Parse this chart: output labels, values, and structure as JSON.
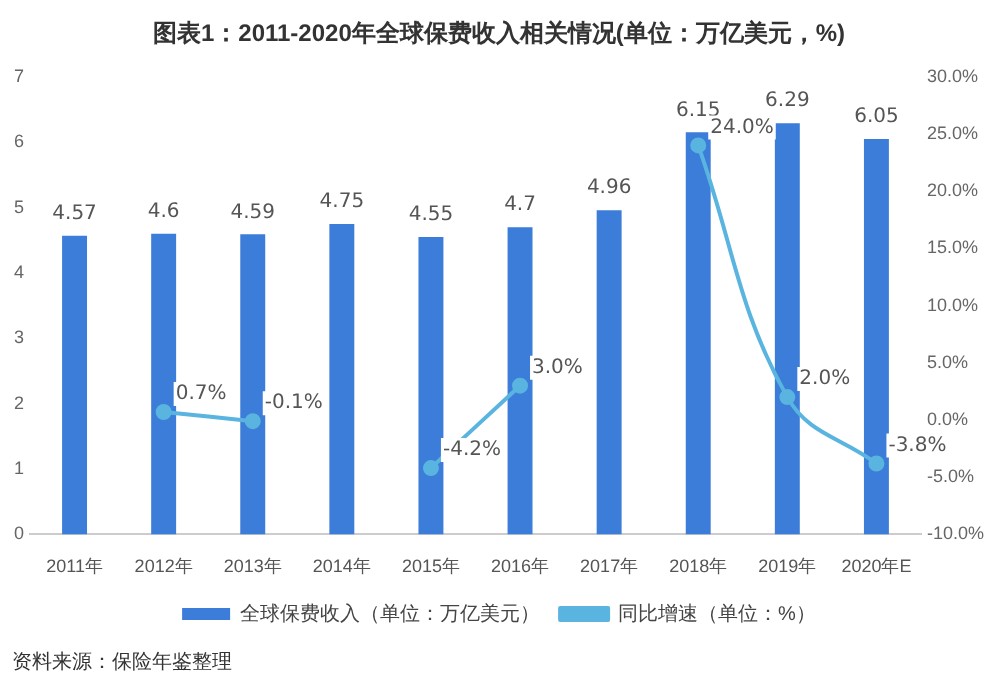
{
  "chart_data": {
    "type": "bar",
    "title": "图表1：2011-2020年全球保费收入相关情况(单位：万亿美元，%)",
    "categories": [
      "2011年",
      "2012年",
      "2013年",
      "2014年",
      "2015年",
      "2016年",
      "2017年",
      "2018年",
      "2019年",
      "2020年E"
    ],
    "series": [
      {
        "name": "全球保费收入（单位：万亿美元）",
        "color": "#3b7dd8",
        "values": [
          4.57,
          4.6,
          4.59,
          4.75,
          4.55,
          4.7,
          4.96,
          6.15,
          6.29,
          6.05
        ],
        "value_labels": [
          "4.57",
          "4.6",
          "4.59",
          "4.75",
          "4.55",
          "4.7",
          "4.96",
          "6.15",
          "6.29",
          "6.05"
        ]
      },
      {
        "name": "同比增速（单位：%）",
        "type": "line",
        "axis": "y2",
        "color": "#5ab4e0",
        "values": [
          null,
          0.7,
          -0.1,
          null,
          -4.2,
          3.0,
          null,
          24.0,
          2.0,
          -3.8
        ],
        "value_labels": [
          null,
          "0.7%",
          "-0.1%",
          null,
          "-4.2%",
          "3.0%",
          null,
          "24.0%",
          "2.0%",
          "-3.8%"
        ]
      }
    ],
    "ylim": [
      0,
      7
    ],
    "yticks": [
      0,
      1,
      2,
      3,
      4,
      5,
      6,
      7
    ],
    "y2lim": [
      -10,
      30
    ],
    "y2ticks": [
      {
        "value": -10,
        "label": "-10.0%"
      },
      {
        "value": -5,
        "label": "-5.0%"
      },
      {
        "value": 0,
        "label": "0.0%"
      },
      {
        "value": 5,
        "label": "5.0%"
      },
      {
        "value": 10,
        "label": "10.0%"
      },
      {
        "value": 15,
        "label": "15.0%"
      },
      {
        "value": 20,
        "label": "20.0%"
      },
      {
        "value": 25,
        "label": "25.0%"
      },
      {
        "value": 30,
        "label": "30.0%"
      }
    ],
    "marker": "circle",
    "legend": "bottom",
    "grid": false,
    "annotations": [
      "资料来源：保险年鉴整理"
    ]
  }
}
